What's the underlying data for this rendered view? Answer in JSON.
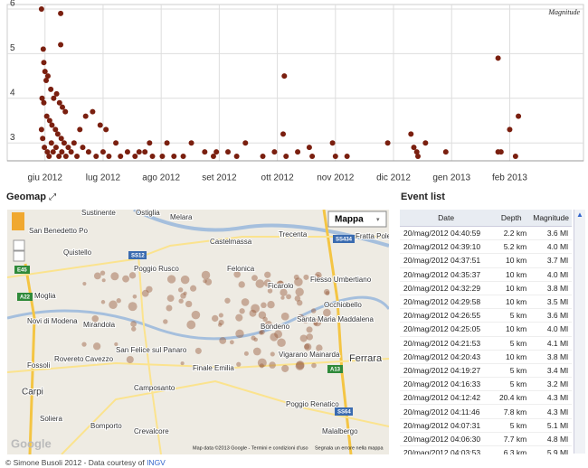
{
  "chart_data": {
    "type": "scatter",
    "x": [
      -0.06,
      0.27,
      -0.03,
      0.27,
      -0.02,
      0.0,
      0.02,
      0.05,
      0.1,
      0.15,
      0.2,
      0.25,
      0.3,
      0.35,
      -0.05,
      -0.02,
      0.03,
      0.08,
      0.12,
      0.18,
      0.22,
      0.28,
      0.33,
      0.4,
      -0.06,
      -0.04,
      -0.01,
      0.04,
      0.07,
      0.11,
      0.14,
      0.19,
      0.24,
      0.29,
      0.36,
      0.45,
      0.5,
      0.55,
      0.6,
      0.65,
      0.7,
      0.75,
      0.82,
      0.88,
      0.95,
      1.0,
      1.05,
      1.1,
      1.22,
      1.3,
      1.42,
      1.55,
      1.62,
      1.72,
      1.8,
      1.85,
      2.02,
      2.1,
      2.22,
      2.38,
      2.52,
      2.75,
      2.9,
      2.95,
      3.15,
      3.3,
      3.45,
      3.75,
      3.95,
      4.1,
      4.12,
      4.15,
      4.35,
      4.55,
      4.6,
      4.95,
      5.0,
      5.2,
      5.9,
      6.3,
      6.35,
      6.4,
      6.42,
      6.55,
      6.9,
      7.8,
      7.8,
      7.85,
      8.0,
      8.1,
      8.15
    ],
    "series": [
      {
        "name": "Magnitude",
        "color": "#7a1f0f",
        "values": [
          6.0,
          5.9,
          5.1,
          5.2,
          4.8,
          4.6,
          4.4,
          4.5,
          4.2,
          4.0,
          4.1,
          3.9,
          3.8,
          3.7,
          4.0,
          3.9,
          3.6,
          3.5,
          3.4,
          3.3,
          3.2,
          3.1,
          3.0,
          2.9,
          3.3,
          3.1,
          2.9,
          2.8,
          2.7,
          3.0,
          2.8,
          2.9,
          2.7,
          2.8,
          2.7,
          2.8,
          3.0,
          2.7,
          3.3,
          2.9,
          3.6,
          2.8,
          3.7,
          2.7,
          3.4,
          2.8,
          3.3,
          2.7,
          3.0,
          2.7,
          2.8,
          2.7,
          2.8,
          2.8,
          3.0,
          2.7,
          2.7,
          3.0,
          2.7,
          2.7,
          3.0,
          2.8,
          2.7,
          2.8,
          2.8,
          2.7,
          3.0,
          2.7,
          2.8,
          3.2,
          4.5,
          2.7,
          2.8,
          2.9,
          2.7,
          3.0,
          2.7,
          2.7,
          3.0,
          3.2,
          2.9,
          2.8,
          2.7,
          3.0,
          2.8,
          4.9,
          2.8,
          2.8,
          3.3,
          2.7,
          3.6
        ]
      }
    ],
    "xlim": [
      -0.65,
      9.27
    ],
    "xticks": [
      {
        "value": 0,
        "label": "giu 2012"
      },
      {
        "value": 1,
        "label": "lug 2012"
      },
      {
        "value": 2,
        "label": "ago 2012"
      },
      {
        "value": 3,
        "label": "set 2012"
      },
      {
        "value": 4,
        "label": "ott 2012"
      },
      {
        "value": 5,
        "label": "nov 2012"
      },
      {
        "value": 6,
        "label": "dic 2012"
      },
      {
        "value": 7,
        "label": "gen 2013"
      },
      {
        "value": 8,
        "label": "feb 2013"
      }
    ],
    "ylim": [
      2.6,
      6.1
    ],
    "yticks": [
      3,
      4,
      5,
      6
    ],
    "grid": true,
    "legend": "top-right"
  },
  "geomap": {
    "title": "Geomap",
    "map_type": "Mappa",
    "logo": "Google",
    "attribution": "Map data ©2013 Google - Termini e condizioni d'uso",
    "report": "Segnala un errore nella mappa",
    "places": [
      "Sustinente",
      "Ostiglia",
      "Melara",
      "Trecenta",
      "Fratta Polesine",
      "San Benedetto Po",
      "Quistello",
      "Castelmassa",
      "Poggio Rusco",
      "Felonica",
      "Ficarolo",
      "Fiesso Umbertiano",
      "Moglia",
      "Occhiobello",
      "Novi di Modena",
      "Mirandola",
      "Bondeno",
      "Santa Maria Maddalena",
      "San Felice sul Panaro",
      "Finale Emilia",
      "Vigarano Mainarda",
      "Ferrara",
      "Fossoli",
      "Rovereto",
      "Cavezzo",
      "Camposanto",
      "Carpi",
      "Poggio Renatico",
      "Soliera",
      "Bomporto",
      "Crevalcore",
      "Malalbergo"
    ],
    "roads": [
      "SS12",
      "SS434",
      "E45",
      "A22",
      "A13",
      "SS64"
    ]
  },
  "event_list": {
    "title": "Event list",
    "columns": [
      "Date",
      "Depth",
      "Magnitude"
    ],
    "rows": [
      [
        "20/mag/2012 04:40:59",
        "2.2 km",
        "3.6 Ml"
      ],
      [
        "20/mag/2012 04:39:10",
        "5.2 km",
        "4.0 Ml"
      ],
      [
        "20/mag/2012 04:37:51",
        "10 km",
        "3.7 Ml"
      ],
      [
        "20/mag/2012 04:35:37",
        "10 km",
        "4.0 Ml"
      ],
      [
        "20/mag/2012 04:32:29",
        "10 km",
        "3.8 Ml"
      ],
      [
        "20/mag/2012 04:29:58",
        "10 km",
        "3.5 Ml"
      ],
      [
        "20/mag/2012 04:26:55",
        "5 km",
        "3.6 Ml"
      ],
      [
        "20/mag/2012 04:25:05",
        "10 km",
        "4.0 Ml"
      ],
      [
        "20/mag/2012 04:21:53",
        "5 km",
        "4.1 Ml"
      ],
      [
        "20/mag/2012 04:20:43",
        "10 km",
        "3.8 Ml"
      ],
      [
        "20/mag/2012 04:19:27",
        "5 km",
        "3.4 Ml"
      ],
      [
        "20/mag/2012 04:16:33",
        "5 km",
        "3.2 Ml"
      ],
      [
        "20/mag/2012 04:12:42",
        "20.4 km",
        "4.3 Ml"
      ],
      [
        "20/mag/2012 04:11:46",
        "7.8 km",
        "4.3 Ml"
      ],
      [
        "20/mag/2012 04:07:31",
        "5 km",
        "5.1 Ml"
      ],
      [
        "20/mag/2012 04:06:30",
        "7.7 km",
        "4.8 Ml"
      ],
      [
        "20/mag/2012 04:03:53",
        "6.3 km",
        "5.9 Ml"
      ]
    ]
  },
  "footer": {
    "text": "© Simone Busoli 2012 - Data courtesy of",
    "link": "INGV"
  }
}
